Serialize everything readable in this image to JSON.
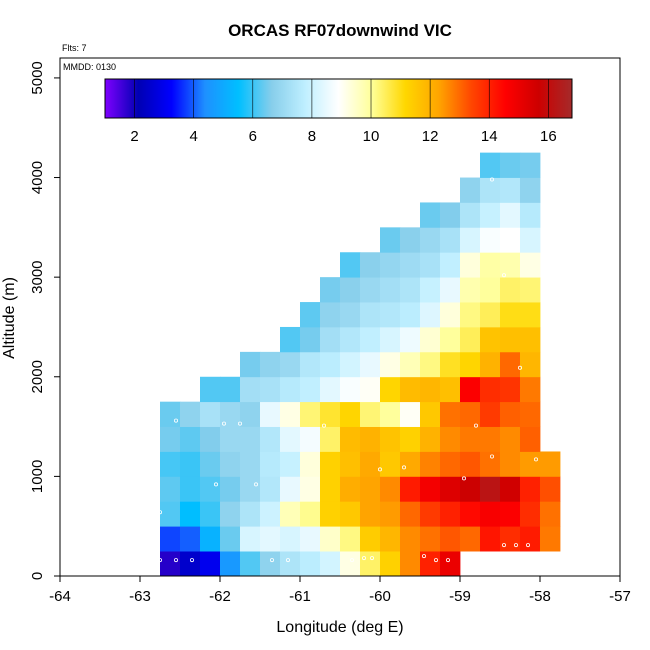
{
  "chart_data": {
    "type": "heatmap",
    "title": "ORCAS RF07downwind VIC",
    "annotations": {
      "flights": "Flts: 7",
      "date": "MMDD: 0130"
    },
    "xlabel": "Longitude (deg E)",
    "ylabel": "Altitude (m)",
    "xlim": [
      -64,
      -57
    ],
    "ylim": [
      0,
      5200
    ],
    "xticks": [
      -64,
      -63,
      -62,
      -61,
      -60,
      -59,
      -58,
      -57
    ],
    "yticks": [
      0,
      1000,
      2000,
      3000,
      4000,
      5000
    ],
    "x_bin_width_deg": 0.25,
    "y_bin_height_m": 250,
    "colorbar": {
      "range": [
        1,
        16.8
      ],
      "ticks": [
        2,
        4,
        6,
        8,
        10,
        12,
        14,
        16
      ],
      "placement": "top inside plot",
      "colors": [
        "#7f00ff",
        "#0000b3",
        "#0000ff",
        "#1e90ff",
        "#00bfff",
        "#87ceeb",
        "#bfefff",
        "#ffffff",
        "#ffff99",
        "#ffd700",
        "#ffa500",
        "#ff4500",
        "#ff0000",
        "#cd0000",
        "#a52a2a"
      ]
    },
    "columns": [
      {
        "x": -62.75,
        "y0": 0,
        "values": [
          1.8,
          3.8,
          6.2,
          6.3,
          6.1,
          6.5,
          6.4
        ]
      },
      {
        "x": -62.5,
        "y0": 0,
        "values": [
          2.5,
          4.0,
          5.5,
          6.0,
          6.0,
          6.3,
          6.8
        ]
      },
      {
        "x": -62.25,
        "y0": 0,
        "values": [
          3.0,
          5.2,
          6.0,
          6.2,
          6.4,
          6.6,
          7.3,
          6.2
        ]
      },
      {
        "x": -62.0,
        "y0": 0,
        "values": [
          4.6,
          6.4,
          6.8,
          6.5,
          6.8,
          7.0,
          7.0,
          6.2
        ]
      },
      {
        "x": -61.75,
        "y0": 0,
        "values": [
          6.2,
          8.2,
          7.4,
          7.0,
          7.0,
          7.0,
          6.8,
          7.2,
          6.5
        ]
      },
      {
        "x": -61.5,
        "y0": 0,
        "values": [
          6.8,
          8.4,
          8.0,
          7.5,
          7.6,
          7.5,
          8.5,
          7.3,
          6.8
        ]
      },
      {
        "x": -61.25,
        "y0": 0,
        "values": [
          7.4,
          8.2,
          9.7,
          8.5,
          7.9,
          8.4,
          9.2,
          7.6,
          7.0,
          6.2
        ]
      },
      {
        "x": -61.0,
        "y0": 0,
        "values": [
          7.7,
          8.5,
          10.1,
          9.2,
          9.3,
          8.7,
          10.3,
          7.8,
          7.5,
          6.5,
          6.3
        ]
      },
      {
        "x": -60.75,
        "y0": 0,
        "values": [
          8.1,
          9.5,
          11.3,
          11.3,
          11.3,
          10.4,
          10.8,
          8.4,
          7.7,
          7.2,
          6.8,
          6.5
        ]
      },
      {
        "x": -60.5,
        "y0": 0,
        "values": [
          9.2,
          10.2,
          11.5,
          12.1,
          11.7,
          11.8,
          11.2,
          8.8,
          8.1,
          7.5,
          7.0,
          6.7,
          6.2
        ]
      },
      {
        "x": -60.25,
        "y0": 0,
        "values": [
          10.4,
          11.4,
          12.3,
          12.3,
          12.2,
          12.0,
          10.3,
          9.0,
          8.5,
          7.8,
          7.4,
          7.0,
          6.7
        ]
      },
      {
        "x": -60.0,
        "y0": 0,
        "values": [
          11.3,
          11.9,
          12.4,
          12.6,
          11.5,
          11.6,
          10.0,
          11.2,
          9.2,
          8.2,
          7.5,
          7.2,
          6.9,
          6.4
        ]
      },
      {
        "x": -59.75,
        "y0": 0,
        "values": [
          12.6,
          12.6,
          13.0,
          14.1,
          12.2,
          11.3,
          9.0,
          11.8,
          9.7,
          8.6,
          7.7,
          7.4,
          7.1,
          6.7
        ]
      },
      {
        "x": -59.5,
        "y0": 0,
        "values": [
          14.0,
          12.9,
          13.6,
          14.8,
          12.7,
          12.0,
          11.5,
          11.9,
          10.2,
          9.4,
          8.3,
          7.9,
          7.3,
          7.0,
          6.4
        ]
      },
      {
        "x": -59.25,
        "y0": 0,
        "values": [
          15.0,
          13.2,
          14.0,
          15.3,
          13.0,
          12.6,
          12.9,
          11.7,
          10.9,
          10.0,
          9.3,
          8.5,
          7.8,
          7.3,
          6.6
        ]
      },
      {
        "x": -59.0,
        "y0": 250,
        "values": [
          13.0,
          14.4,
          15.7,
          13.2,
          12.8,
          13.0,
          14.6,
          11.2,
          10.5,
          10.2,
          9.8,
          9.3,
          8.2,
          7.4,
          6.8
        ]
      },
      {
        "x": -58.75,
        "y0": 250,
        "values": [
          14.2,
          14.7,
          16.2,
          12.9,
          12.8,
          13.6,
          13.8,
          12.0,
          11.6,
          10.5,
          10.0,
          9.9,
          8.8,
          7.9,
          7.4,
          6.2
        ]
      },
      {
        "x": -58.5,
        "y0": 250,
        "values": [
          13.8,
          14.6,
          15.6,
          12.6,
          12.6,
          13.1,
          13.7,
          13.0,
          11.7,
          11.0,
          10.4,
          9.8,
          8.9,
          8.4,
          7.5,
          6.4
        ]
      },
      {
        "x": -58.25,
        "y0": 250,
        "values": [
          14.1,
          13.8,
          14.0,
          12.4,
          13.1,
          13.0,
          12.8,
          11.9,
          11.7,
          11.0,
          10.3,
          9.2,
          8.2,
          7.6,
          6.8,
          6.5
        ]
      },
      {
        "x": -58.0,
        "y0": 250,
        "values": [
          12.8,
          12.9,
          13.3,
          12.4
        ]
      }
    ],
    "sample_points": [
      [
        -62.75,
        160
      ],
      [
        -62.55,
        160
      ],
      [
        -62.35,
        160
      ],
      [
        -62.75,
        640
      ],
      [
        -62.05,
        920
      ],
      [
        -62.55,
        1560
      ],
      [
        -61.95,
        1530
      ],
      [
        -61.75,
        1530
      ],
      [
        -61.55,
        920
      ],
      [
        -61.35,
        160
      ],
      [
        -61.15,
        160
      ],
      [
        -60.7,
        1510
      ],
      [
        -60.35,
        160
      ],
      [
        -60.2,
        180
      ],
      [
        -60.1,
        180
      ],
      [
        -60.0,
        1070
      ],
      [
        -59.7,
        1090
      ],
      [
        -59.45,
        200
      ],
      [
        -59.3,
        160
      ],
      [
        -59.15,
        160
      ],
      [
        -58.95,
        980
      ],
      [
        -58.8,
        1510
      ],
      [
        -58.6,
        1200
      ],
      [
        -58.6,
        3980
      ],
      [
        -58.45,
        3020
      ],
      [
        -58.45,
        310
      ],
      [
        -58.3,
        310
      ],
      [
        -58.25,
        2090
      ],
      [
        -58.15,
        310
      ],
      [
        -58.05,
        1170
      ]
    ]
  }
}
